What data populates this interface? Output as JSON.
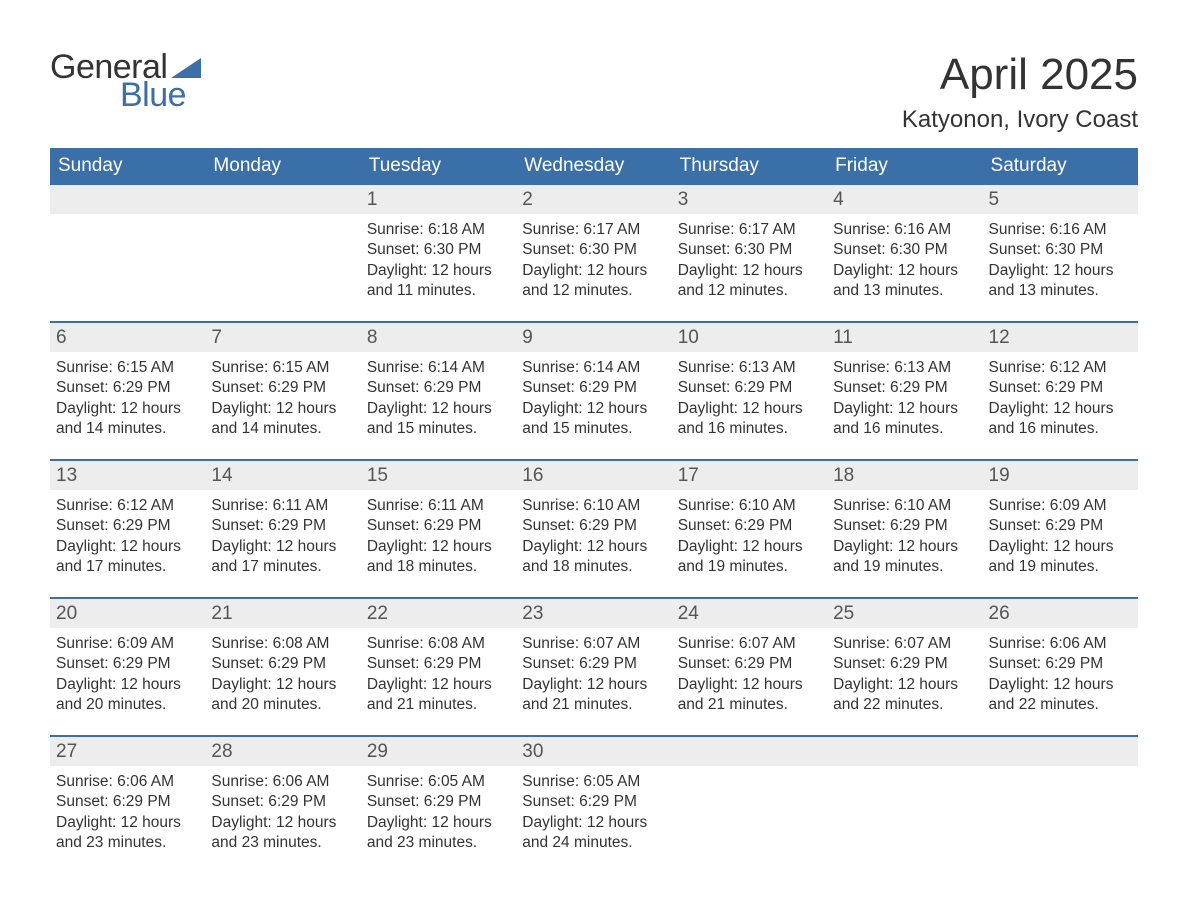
{
  "brand": {
    "name_top": "General",
    "name_bottom": "Blue",
    "flag_color": "#3b6fa8",
    "text_color_top": "#333333",
    "text_color_bottom": "#3b6fa8"
  },
  "title": "April 2025",
  "location": "Katyonon, Ivory Coast",
  "colors": {
    "header_bg": "#3b6fa8",
    "header_text": "#ffffff",
    "daynum_bar_bg": "#ededed",
    "daynum_text": "#555555",
    "body_text": "#333333",
    "row_border": "#3b6fa8",
    "page_bg": "#ffffff"
  },
  "typography": {
    "title_fontsize": 44,
    "location_fontsize": 24,
    "dayheader_fontsize": 19,
    "daynum_fontsize": 19,
    "body_fontsize": 15.5,
    "font_family": "Arial"
  },
  "day_headers": [
    "Sunday",
    "Monday",
    "Tuesday",
    "Wednesday",
    "Thursday",
    "Friday",
    "Saturday"
  ],
  "weeks": [
    [
      {
        "day": "",
        "sunrise": "",
        "sunset": "",
        "daylight_l1": "",
        "daylight_l2": ""
      },
      {
        "day": "",
        "sunrise": "",
        "sunset": "",
        "daylight_l1": "",
        "daylight_l2": ""
      },
      {
        "day": "1",
        "sunrise": "Sunrise: 6:18 AM",
        "sunset": "Sunset: 6:30 PM",
        "daylight_l1": "Daylight: 12 hours",
        "daylight_l2": "and 11 minutes."
      },
      {
        "day": "2",
        "sunrise": "Sunrise: 6:17 AM",
        "sunset": "Sunset: 6:30 PM",
        "daylight_l1": "Daylight: 12 hours",
        "daylight_l2": "and 12 minutes."
      },
      {
        "day": "3",
        "sunrise": "Sunrise: 6:17 AM",
        "sunset": "Sunset: 6:30 PM",
        "daylight_l1": "Daylight: 12 hours",
        "daylight_l2": "and 12 minutes."
      },
      {
        "day": "4",
        "sunrise": "Sunrise: 6:16 AM",
        "sunset": "Sunset: 6:30 PM",
        "daylight_l1": "Daylight: 12 hours",
        "daylight_l2": "and 13 minutes."
      },
      {
        "day": "5",
        "sunrise": "Sunrise: 6:16 AM",
        "sunset": "Sunset: 6:30 PM",
        "daylight_l1": "Daylight: 12 hours",
        "daylight_l2": "and 13 minutes."
      }
    ],
    [
      {
        "day": "6",
        "sunrise": "Sunrise: 6:15 AM",
        "sunset": "Sunset: 6:29 PM",
        "daylight_l1": "Daylight: 12 hours",
        "daylight_l2": "and 14 minutes."
      },
      {
        "day": "7",
        "sunrise": "Sunrise: 6:15 AM",
        "sunset": "Sunset: 6:29 PM",
        "daylight_l1": "Daylight: 12 hours",
        "daylight_l2": "and 14 minutes."
      },
      {
        "day": "8",
        "sunrise": "Sunrise: 6:14 AM",
        "sunset": "Sunset: 6:29 PM",
        "daylight_l1": "Daylight: 12 hours",
        "daylight_l2": "and 15 minutes."
      },
      {
        "day": "9",
        "sunrise": "Sunrise: 6:14 AM",
        "sunset": "Sunset: 6:29 PM",
        "daylight_l1": "Daylight: 12 hours",
        "daylight_l2": "and 15 minutes."
      },
      {
        "day": "10",
        "sunrise": "Sunrise: 6:13 AM",
        "sunset": "Sunset: 6:29 PM",
        "daylight_l1": "Daylight: 12 hours",
        "daylight_l2": "and 16 minutes."
      },
      {
        "day": "11",
        "sunrise": "Sunrise: 6:13 AM",
        "sunset": "Sunset: 6:29 PM",
        "daylight_l1": "Daylight: 12 hours",
        "daylight_l2": "and 16 minutes."
      },
      {
        "day": "12",
        "sunrise": "Sunrise: 6:12 AM",
        "sunset": "Sunset: 6:29 PM",
        "daylight_l1": "Daylight: 12 hours",
        "daylight_l2": "and 16 minutes."
      }
    ],
    [
      {
        "day": "13",
        "sunrise": "Sunrise: 6:12 AM",
        "sunset": "Sunset: 6:29 PM",
        "daylight_l1": "Daylight: 12 hours",
        "daylight_l2": "and 17 minutes."
      },
      {
        "day": "14",
        "sunrise": "Sunrise: 6:11 AM",
        "sunset": "Sunset: 6:29 PM",
        "daylight_l1": "Daylight: 12 hours",
        "daylight_l2": "and 17 minutes."
      },
      {
        "day": "15",
        "sunrise": "Sunrise: 6:11 AM",
        "sunset": "Sunset: 6:29 PM",
        "daylight_l1": "Daylight: 12 hours",
        "daylight_l2": "and 18 minutes."
      },
      {
        "day": "16",
        "sunrise": "Sunrise: 6:10 AM",
        "sunset": "Sunset: 6:29 PM",
        "daylight_l1": "Daylight: 12 hours",
        "daylight_l2": "and 18 minutes."
      },
      {
        "day": "17",
        "sunrise": "Sunrise: 6:10 AM",
        "sunset": "Sunset: 6:29 PM",
        "daylight_l1": "Daylight: 12 hours",
        "daylight_l2": "and 19 minutes."
      },
      {
        "day": "18",
        "sunrise": "Sunrise: 6:10 AM",
        "sunset": "Sunset: 6:29 PM",
        "daylight_l1": "Daylight: 12 hours",
        "daylight_l2": "and 19 minutes."
      },
      {
        "day": "19",
        "sunrise": "Sunrise: 6:09 AM",
        "sunset": "Sunset: 6:29 PM",
        "daylight_l1": "Daylight: 12 hours",
        "daylight_l2": "and 19 minutes."
      }
    ],
    [
      {
        "day": "20",
        "sunrise": "Sunrise: 6:09 AM",
        "sunset": "Sunset: 6:29 PM",
        "daylight_l1": "Daylight: 12 hours",
        "daylight_l2": "and 20 minutes."
      },
      {
        "day": "21",
        "sunrise": "Sunrise: 6:08 AM",
        "sunset": "Sunset: 6:29 PM",
        "daylight_l1": "Daylight: 12 hours",
        "daylight_l2": "and 20 minutes."
      },
      {
        "day": "22",
        "sunrise": "Sunrise: 6:08 AM",
        "sunset": "Sunset: 6:29 PM",
        "daylight_l1": "Daylight: 12 hours",
        "daylight_l2": "and 21 minutes."
      },
      {
        "day": "23",
        "sunrise": "Sunrise: 6:07 AM",
        "sunset": "Sunset: 6:29 PM",
        "daylight_l1": "Daylight: 12 hours",
        "daylight_l2": "and 21 minutes."
      },
      {
        "day": "24",
        "sunrise": "Sunrise: 6:07 AM",
        "sunset": "Sunset: 6:29 PM",
        "daylight_l1": "Daylight: 12 hours",
        "daylight_l2": "and 21 minutes."
      },
      {
        "day": "25",
        "sunrise": "Sunrise: 6:07 AM",
        "sunset": "Sunset: 6:29 PM",
        "daylight_l1": "Daylight: 12 hours",
        "daylight_l2": "and 22 minutes."
      },
      {
        "day": "26",
        "sunrise": "Sunrise: 6:06 AM",
        "sunset": "Sunset: 6:29 PM",
        "daylight_l1": "Daylight: 12 hours",
        "daylight_l2": "and 22 minutes."
      }
    ],
    [
      {
        "day": "27",
        "sunrise": "Sunrise: 6:06 AM",
        "sunset": "Sunset: 6:29 PM",
        "daylight_l1": "Daylight: 12 hours",
        "daylight_l2": "and 23 minutes."
      },
      {
        "day": "28",
        "sunrise": "Sunrise: 6:06 AM",
        "sunset": "Sunset: 6:29 PM",
        "daylight_l1": "Daylight: 12 hours",
        "daylight_l2": "and 23 minutes."
      },
      {
        "day": "29",
        "sunrise": "Sunrise: 6:05 AM",
        "sunset": "Sunset: 6:29 PM",
        "daylight_l1": "Daylight: 12 hours",
        "daylight_l2": "and 23 minutes."
      },
      {
        "day": "30",
        "sunrise": "Sunrise: 6:05 AM",
        "sunset": "Sunset: 6:29 PM",
        "daylight_l1": "Daylight: 12 hours",
        "daylight_l2": "and 24 minutes."
      },
      {
        "day": "",
        "sunrise": "",
        "sunset": "",
        "daylight_l1": "",
        "daylight_l2": ""
      },
      {
        "day": "",
        "sunrise": "",
        "sunset": "",
        "daylight_l1": "",
        "daylight_l2": ""
      },
      {
        "day": "",
        "sunrise": "",
        "sunset": "",
        "daylight_l1": "",
        "daylight_l2": ""
      }
    ]
  ]
}
